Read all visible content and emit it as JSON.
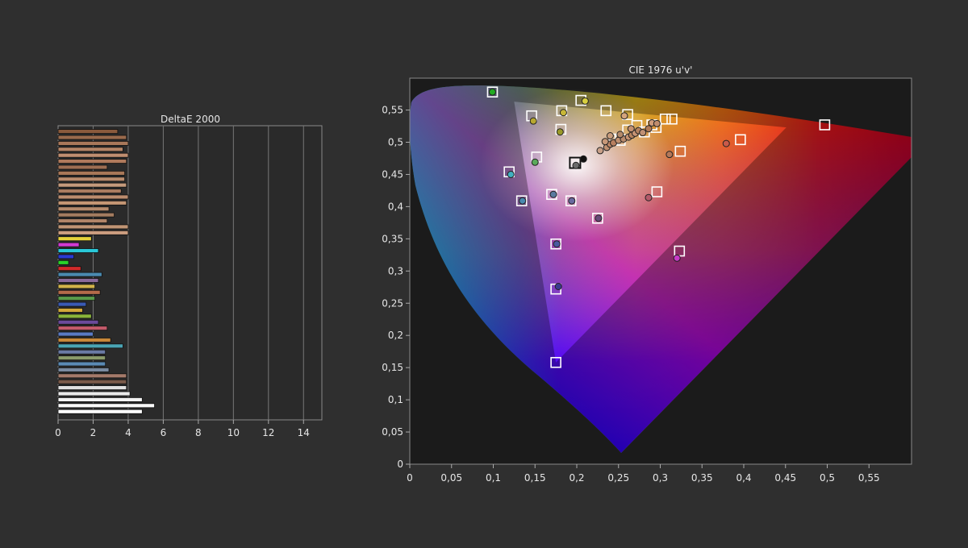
{
  "chart_data": [
    {
      "type": "bar",
      "orientation": "horizontal",
      "title": "DeltaE 2000",
      "xlim": [
        0,
        15
      ],
      "xticks": [
        "0",
        "2",
        "4",
        "6",
        "8",
        "10",
        "12",
        "14"
      ],
      "grid": true,
      "bars": [
        {
          "value": 3.4,
          "color": "#8a5a3c"
        },
        {
          "value": 3.9,
          "color": "#9a6a4c"
        },
        {
          "value": 4.0,
          "color": "#a8785a"
        },
        {
          "value": 3.7,
          "color": "#b48466"
        },
        {
          "value": 4.0,
          "color": "#c08e70"
        },
        {
          "value": 3.9,
          "color": "#b07a5c"
        },
        {
          "value": 2.8,
          "color": "#9e6e52"
        },
        {
          "value": 3.8,
          "color": "#a87858"
        },
        {
          "value": 3.8,
          "color": "#b88a6c"
        },
        {
          "value": 3.9,
          "color": "#c49a7c"
        },
        {
          "value": 3.6,
          "color": "#aa7c60"
        },
        {
          "value": 4.0,
          "color": "#bc8c6e"
        },
        {
          "value": 3.9,
          "color": "#c49674"
        },
        {
          "value": 2.9,
          "color": "#b48a6c"
        },
        {
          "value": 3.2,
          "color": "#a47c60"
        },
        {
          "value": 2.8,
          "color": "#b08468"
        },
        {
          "value": 4.0,
          "color": "#c09474"
        },
        {
          "value": 4.0,
          "color": "#cc9e80"
        },
        {
          "value": 1.9,
          "color": "#e6d23a"
        },
        {
          "value": 1.2,
          "color": "#d23ad2"
        },
        {
          "value": 2.3,
          "color": "#2ac8d8"
        },
        {
          "value": 0.9,
          "color": "#2a3ad2"
        },
        {
          "value": 0.6,
          "color": "#2ad22a"
        },
        {
          "value": 1.3,
          "color": "#d22a2a"
        },
        {
          "value": 2.5,
          "color": "#4a8ab0"
        },
        {
          "value": 2.3,
          "color": "#8a6a9a"
        },
        {
          "value": 2.1,
          "color": "#d2b44a"
        },
        {
          "value": 2.4,
          "color": "#b46a4a"
        },
        {
          "value": 2.1,
          "color": "#5a9a4a"
        },
        {
          "value": 1.6,
          "color": "#3a5ab4"
        },
        {
          "value": 1.4,
          "color": "#d2a83a"
        },
        {
          "value": 1.9,
          "color": "#8ab43a"
        },
        {
          "value": 2.3,
          "color": "#6a4a9a"
        },
        {
          "value": 2.8,
          "color": "#c25a6a"
        },
        {
          "value": 2.0,
          "color": "#5a7ac4"
        },
        {
          "value": 3.0,
          "color": "#c8883a"
        },
        {
          "value": 3.7,
          "color": "#4aa4b4"
        },
        {
          "value": 2.7,
          "color": "#6a7aa4"
        },
        {
          "value": 2.7,
          "color": "#8a9a6a"
        },
        {
          "value": 2.7,
          "color": "#5a8ab4"
        },
        {
          "value": 2.9,
          "color": "#7a8aa0"
        },
        {
          "value": 3.9,
          "color": "#a47a6a"
        },
        {
          "value": 3.9,
          "color": "#7a5a4a"
        },
        {
          "value": 3.9,
          "color": "#e0e0e0"
        },
        {
          "value": 4.1,
          "color": "#eaeaea"
        },
        {
          "value": 4.8,
          "color": "#f2f2f2"
        },
        {
          "value": 5.5,
          "color": "#f8f8f8"
        },
        {
          "value": 4.8,
          "color": "#ffffff"
        }
      ]
    },
    {
      "type": "scatter",
      "title": "CIE 1976 u'v'",
      "xlim": [
        0,
        0.6
      ],
      "ylim": [
        0,
        0.6
      ],
      "xticks": [
        "0",
        "0,05",
        "0,1",
        "0,15",
        "0,2",
        "0,25",
        "0,3",
        "0,35",
        "0,4",
        "0,45",
        "0,5",
        "0,55"
      ],
      "yticks": [
        "0",
        "0,05",
        "0,1",
        "0,15",
        "0,2",
        "0,25",
        "0,3",
        "0,35",
        "0,4",
        "0,45",
        "0,5",
        "0,55"
      ],
      "gamut_triangle": {
        "red": [
          0.451,
          0.523
        ],
        "green": [
          0.125,
          0.563
        ],
        "blue": [
          0.175,
          0.158
        ]
      },
      "white_point": [
        0.198,
        0.468
      ],
      "targets": [
        [
          0.099,
          0.578
        ],
        [
          0.205,
          0.565
        ],
        [
          0.146,
          0.541
        ],
        [
          0.182,
          0.549
        ],
        [
          0.235,
          0.549
        ],
        [
          0.261,
          0.543
        ],
        [
          0.306,
          0.536
        ],
        [
          0.314,
          0.536
        ],
        [
          0.181,
          0.52
        ],
        [
          0.261,
          0.519
        ],
        [
          0.29,
          0.527
        ],
        [
          0.272,
          0.526
        ],
        [
          0.281,
          0.516
        ],
        [
          0.245,
          0.505
        ],
        [
          0.252,
          0.503
        ],
        [
          0.295,
          0.523
        ],
        [
          0.497,
          0.527
        ],
        [
          0.396,
          0.504
        ],
        [
          0.324,
          0.486
        ],
        [
          0.152,
          0.477
        ],
        [
          0.198,
          0.468
        ],
        [
          0.119,
          0.454
        ],
        [
          0.17,
          0.419
        ],
        [
          0.134,
          0.409
        ],
        [
          0.193,
          0.409
        ],
        [
          0.296,
          0.423
        ],
        [
          0.225,
          0.382
        ],
        [
          0.175,
          0.342
        ],
        [
          0.323,
          0.331
        ],
        [
          0.175,
          0.272
        ],
        [
          0.175,
          0.158
        ]
      ],
      "measured": [
        {
          "uv": [
            0.099,
            0.578
          ],
          "color": "#22aa22"
        },
        {
          "uv": [
            0.21,
            0.564
          ],
          "color": "#d8d040"
        },
        {
          "uv": [
            0.148,
            0.533
          ],
          "color": "#b8a830"
        },
        {
          "uv": [
            0.184,
            0.546
          ],
          "color": "#c8b838"
        },
        {
          "uv": [
            0.18,
            0.516
          ],
          "color": "#9a9a28"
        },
        {
          "uv": [
            0.15,
            0.469
          ],
          "color": "#5aaa5a"
        },
        {
          "uv": [
            0.208,
            0.474
          ],
          "color": "#111111"
        },
        {
          "uv": [
            0.199,
            0.464
          ],
          "color": "#6a6a6a"
        },
        {
          "uv": [
            0.121,
            0.45
          ],
          "color": "#40b0c0"
        },
        {
          "uv": [
            0.172,
            0.419
          ],
          "color": "#5a7aa0"
        },
        {
          "uv": [
            0.135,
            0.409
          ],
          "color": "#4a8ab0"
        },
        {
          "uv": [
            0.194,
            0.409
          ],
          "color": "#6a6aa0"
        },
        {
          "uv": [
            0.226,
            0.382
          ],
          "color": "#6a4a7a"
        },
        {
          "uv": [
            0.286,
            0.414
          ],
          "color": "#b45a6a"
        },
        {
          "uv": [
            0.176,
            0.342
          ],
          "color": "#4a5aa0"
        },
        {
          "uv": [
            0.178,
            0.276
          ],
          "color": "#3a3a90"
        },
        {
          "uv": [
            0.32,
            0.32
          ],
          "color": "#c83ac8"
        },
        {
          "uv": [
            0.379,
            0.498
          ],
          "color": "#c85a4a"
        },
        {
          "uv": [
            0.311,
            0.481
          ],
          "color": "#b4785a"
        },
        {
          "uv": [
            0.228,
            0.487
          ],
          "color": "#c8a088"
        },
        {
          "uv": [
            0.236,
            0.492
          ],
          "color": "#c09070"
        },
        {
          "uv": [
            0.24,
            0.497
          ],
          "color": "#c08868"
        },
        {
          "uv": [
            0.234,
            0.501
          ],
          "color": "#c89878"
        },
        {
          "uv": [
            0.244,
            0.499
          ],
          "color": "#b88060"
        },
        {
          "uv": [
            0.25,
            0.503
          ],
          "color": "#c09070"
        },
        {
          "uv": [
            0.256,
            0.505
          ],
          "color": "#b88a6c"
        },
        {
          "uv": [
            0.262,
            0.508
          ],
          "color": "#c49272"
        },
        {
          "uv": [
            0.266,
            0.511
          ],
          "color": "#b8845e"
        },
        {
          "uv": [
            0.27,
            0.514
          ],
          "color": "#c89474"
        },
        {
          "uv": [
            0.274,
            0.518
          ],
          "color": "#b48260"
        },
        {
          "uv": [
            0.279,
            0.515
          ],
          "color": "#c09074"
        },
        {
          "uv": [
            0.286,
            0.521
          ],
          "color": "#b07a58"
        },
        {
          "uv": [
            0.265,
            0.521
          ],
          "color": "#c49070"
        },
        {
          "uv": [
            0.29,
            0.53
          ],
          "color": "#d09c7a"
        },
        {
          "uv": [
            0.296,
            0.529
          ],
          "color": "#c08c6c"
        },
        {
          "uv": [
            0.257,
            0.541
          ],
          "color": "#d4a47c"
        },
        {
          "uv": [
            0.24,
            0.51
          ],
          "color": "#c89c7c"
        },
        {
          "uv": [
            0.252,
            0.512
          ],
          "color": "#b48a6a"
        }
      ]
    }
  ]
}
